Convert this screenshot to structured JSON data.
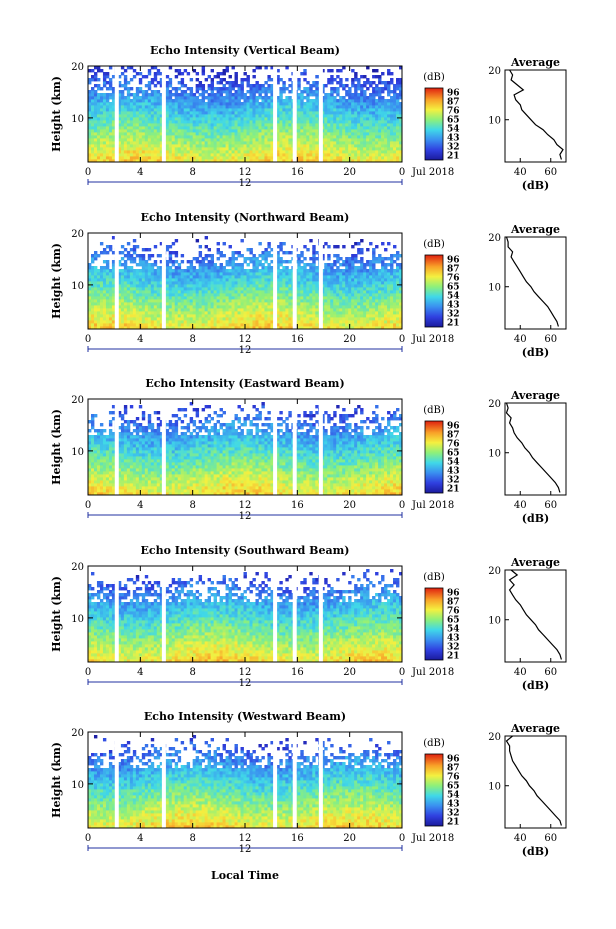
{
  "figure": {
    "xlabel": "Local Time",
    "date_label": "Jul 2018",
    "colorbar_label": "(dB)",
    "colorbar_ticks": [
      "96",
      "87",
      "76",
      "65",
      "54",
      "43",
      "32",
      "21"
    ]
  },
  "chart_data": [
    {
      "type": "heatmap",
      "title": "Echo Intensity (Vertical Beam)",
      "ylabel": "Height (km)",
      "x_range": [
        0,
        24
      ],
      "x_ticks": [
        "0",
        "4",
        "8",
        "12",
        "16",
        "20",
        "0"
      ],
      "y_range": [
        1.5,
        20
      ],
      "y_ticks": [
        "10",
        "20"
      ],
      "mid_label": "12",
      "color_range_db": [
        21,
        96
      ],
      "data_gaps_hours": [
        2.2,
        5.8,
        14.3,
        15.8,
        17.8
      ],
      "average_profile": {
        "title": "Average",
        "xlabel": "(dB)",
        "x_ticks": [
          "40",
          "60"
        ],
        "y_ticks": [
          "10",
          "20"
        ],
        "x_range": [
          30,
          70
        ],
        "height_km": [
          2,
          3,
          4,
          5,
          6,
          7,
          8,
          9,
          10,
          11,
          12,
          13,
          14,
          15,
          16,
          17,
          18,
          19,
          20
        ],
        "value_db": [
          67,
          66,
          68,
          64,
          62,
          58,
          55,
          50,
          47,
          44,
          41,
          40,
          37,
          36,
          42,
          38,
          34,
          35,
          33
        ]
      }
    },
    {
      "type": "heatmap",
      "title": "Echo Intensity (Northward Beam)",
      "ylabel": "Height (km)",
      "x_range": [
        0,
        24
      ],
      "x_ticks": [
        "0",
        "4",
        "8",
        "12",
        "16",
        "20",
        "0"
      ],
      "y_range": [
        1.5,
        20
      ],
      "y_ticks": [
        "10",
        "20"
      ],
      "mid_label": "12",
      "color_range_db": [
        21,
        96
      ],
      "data_gaps_hours": [
        2.2,
        5.8,
        14.3,
        15.8,
        17.8
      ],
      "average_profile": {
        "title": "Average",
        "xlabel": "(dB)",
        "x_ticks": [
          "40",
          "60"
        ],
        "y_ticks": [
          "10",
          "20"
        ],
        "x_range": [
          30,
          70
        ],
        "height_km": [
          2,
          3,
          4,
          5,
          6,
          7,
          8,
          9,
          10,
          11,
          12,
          13,
          14,
          15,
          16,
          17,
          18,
          19,
          20
        ],
        "value_db": [
          65,
          64,
          62,
          60,
          58,
          55,
          52,
          49,
          47,
          44,
          42,
          40,
          38,
          36,
          34,
          35,
          32,
          32,
          31
        ]
      }
    },
    {
      "type": "heatmap",
      "title": "Echo Intensity (Eastward Beam)",
      "ylabel": "Height (km)",
      "x_range": [
        0,
        24
      ],
      "x_ticks": [
        "0",
        "4",
        "8",
        "12",
        "16",
        "20",
        "0"
      ],
      "y_range": [
        1.5,
        20
      ],
      "y_ticks": [
        "10",
        "20"
      ],
      "mid_label": "12",
      "color_range_db": [
        21,
        96
      ],
      "data_gaps_hours": [
        2.2,
        5.8,
        14.3,
        15.8,
        17.8
      ],
      "average_profile": {
        "title": "Average",
        "xlabel": "(dB)",
        "x_ticks": [
          "40",
          "60"
        ],
        "y_ticks": [
          "10",
          "20"
        ],
        "x_range": [
          30,
          70
        ],
        "height_km": [
          2,
          3,
          4,
          5,
          6,
          7,
          8,
          9,
          10,
          11,
          12,
          13,
          14,
          15,
          16,
          17,
          18,
          19,
          20
        ],
        "value_db": [
          66,
          65,
          63,
          60,
          57,
          54,
          51,
          48,
          46,
          43,
          41,
          38,
          36,
          35,
          33,
          34,
          31,
          32,
          31
        ]
      }
    },
    {
      "type": "heatmap",
      "title": "Echo Intensity (Southward Beam)",
      "ylabel": "Height (km)",
      "x_range": [
        0,
        24
      ],
      "x_ticks": [
        "0",
        "4",
        "8",
        "12",
        "16",
        "20",
        "0"
      ],
      "y_range": [
        1.5,
        20
      ],
      "y_ticks": [
        "10",
        "20"
      ],
      "mid_label": "12",
      "color_range_db": [
        21,
        96
      ],
      "data_gaps_hours": [
        2.2,
        5.8,
        14.3,
        15.8,
        17.8
      ],
      "average_profile": {
        "title": "Average",
        "xlabel": "(dB)",
        "x_ticks": [
          "40",
          "60"
        ],
        "y_ticks": [
          "10",
          "20"
        ],
        "x_range": [
          30,
          70
        ],
        "height_km": [
          2,
          3,
          4,
          5,
          6,
          7,
          8,
          9,
          10,
          11,
          12,
          13,
          14,
          15,
          16,
          17,
          18,
          19,
          20
        ],
        "value_db": [
          67,
          66,
          64,
          61,
          58,
          55,
          52,
          50,
          47,
          44,
          42,
          40,
          37,
          35,
          33,
          36,
          33,
          38,
          34
        ]
      }
    },
    {
      "type": "heatmap",
      "title": "Echo Intensity (Westward Beam)",
      "ylabel": "Height (km)",
      "x_range": [
        0,
        24
      ],
      "x_ticks": [
        "0",
        "4",
        "8",
        "12",
        "16",
        "20",
        "0"
      ],
      "y_range": [
        1.5,
        20
      ],
      "y_ticks": [
        "10",
        "20"
      ],
      "mid_label": "12",
      "color_range_db": [
        21,
        96
      ],
      "data_gaps_hours": [
        2.2,
        5.8,
        14.3,
        15.8,
        17.8
      ],
      "average_profile": {
        "title": "Average",
        "xlabel": "(dB)",
        "x_ticks": [
          "40",
          "60"
        ],
        "y_ticks": [
          "10",
          "20"
        ],
        "x_range": [
          30,
          70
        ],
        "height_km": [
          2,
          3,
          4,
          5,
          6,
          7,
          8,
          9,
          10,
          11,
          12,
          13,
          14,
          15,
          16,
          17,
          18,
          19,
          20
        ],
        "value_db": [
          67,
          66,
          63,
          60,
          57,
          54,
          51,
          49,
          46,
          44,
          41,
          39,
          37,
          35,
          34,
          33,
          33,
          31,
          35
        ]
      }
    }
  ]
}
